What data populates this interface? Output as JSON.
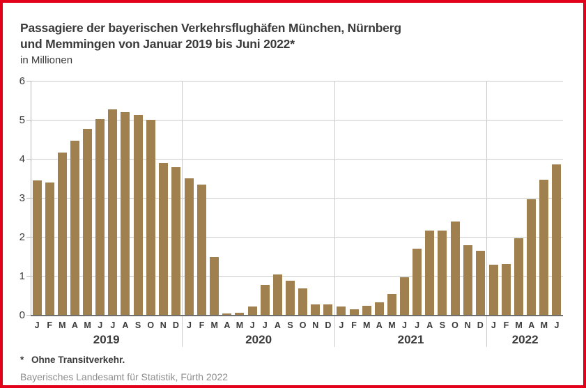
{
  "header": {
    "title_line1": "Passagiere der bayerischen Verkehrsflughäfen München, Nürnberg",
    "title_line2": "und Memmingen von Januar 2019 bis Juni 2022*",
    "subtitle": "in Millionen"
  },
  "chart_data": {
    "type": "bar",
    "title": "Passagiere der bayerischen Verkehrsflughäfen München, Nürnberg und Memmingen von Januar 2019 bis Juni 2022*",
    "ylabel": "in Millionen",
    "xlabel": "",
    "ylim": [
      0,
      6
    ],
    "yticks": [
      0,
      1,
      2,
      3,
      4,
      5,
      6
    ],
    "grid": true,
    "legend": false,
    "bar_color": "#A1804F",
    "groups": [
      {
        "year": "2019",
        "months": [
          "J",
          "F",
          "M",
          "A",
          "M",
          "J",
          "J",
          "A",
          "S",
          "O",
          "N",
          "D"
        ],
        "values": [
          3.44,
          3.4,
          4.17,
          4.46,
          4.76,
          5.01,
          5.27,
          5.2,
          5.12,
          5.0,
          3.89,
          3.79
        ]
      },
      {
        "year": "2020",
        "months": [
          "J",
          "F",
          "M",
          "A",
          "M",
          "J",
          "J",
          "A",
          "S",
          "O",
          "N",
          "D"
        ],
        "values": [
          3.5,
          3.34,
          1.48,
          0.03,
          0.06,
          0.22,
          0.77,
          1.04,
          0.88,
          0.68,
          0.27,
          0.27
        ]
      },
      {
        "year": "2021",
        "months": [
          "J",
          "F",
          "M",
          "A",
          "M",
          "J",
          "J",
          "A",
          "S",
          "O",
          "N",
          "D"
        ],
        "values": [
          0.21,
          0.14,
          0.24,
          0.33,
          0.53,
          0.96,
          1.69,
          2.17,
          2.16,
          2.39,
          1.78,
          1.65
        ]
      },
      {
        "year": "2022",
        "months": [
          "J",
          "F",
          "M",
          "A",
          "M",
          "J"
        ],
        "values": [
          1.29,
          1.31,
          1.97,
          2.96,
          3.46,
          3.86
        ]
      }
    ]
  },
  "footer": {
    "footnote_marker": "*",
    "footnote_text": "Ohne Transitverkehr.",
    "source": "Bayerisches Landesamt für Statistik, Fürth 2022"
  },
  "colors": {
    "frame_border": "#E2001A",
    "bar": "#A1804F",
    "gridline": "#CBCBCB",
    "baseline": "#6F6F6F",
    "text": "#3A3A3A",
    "source_text": "#8C8C8C"
  }
}
